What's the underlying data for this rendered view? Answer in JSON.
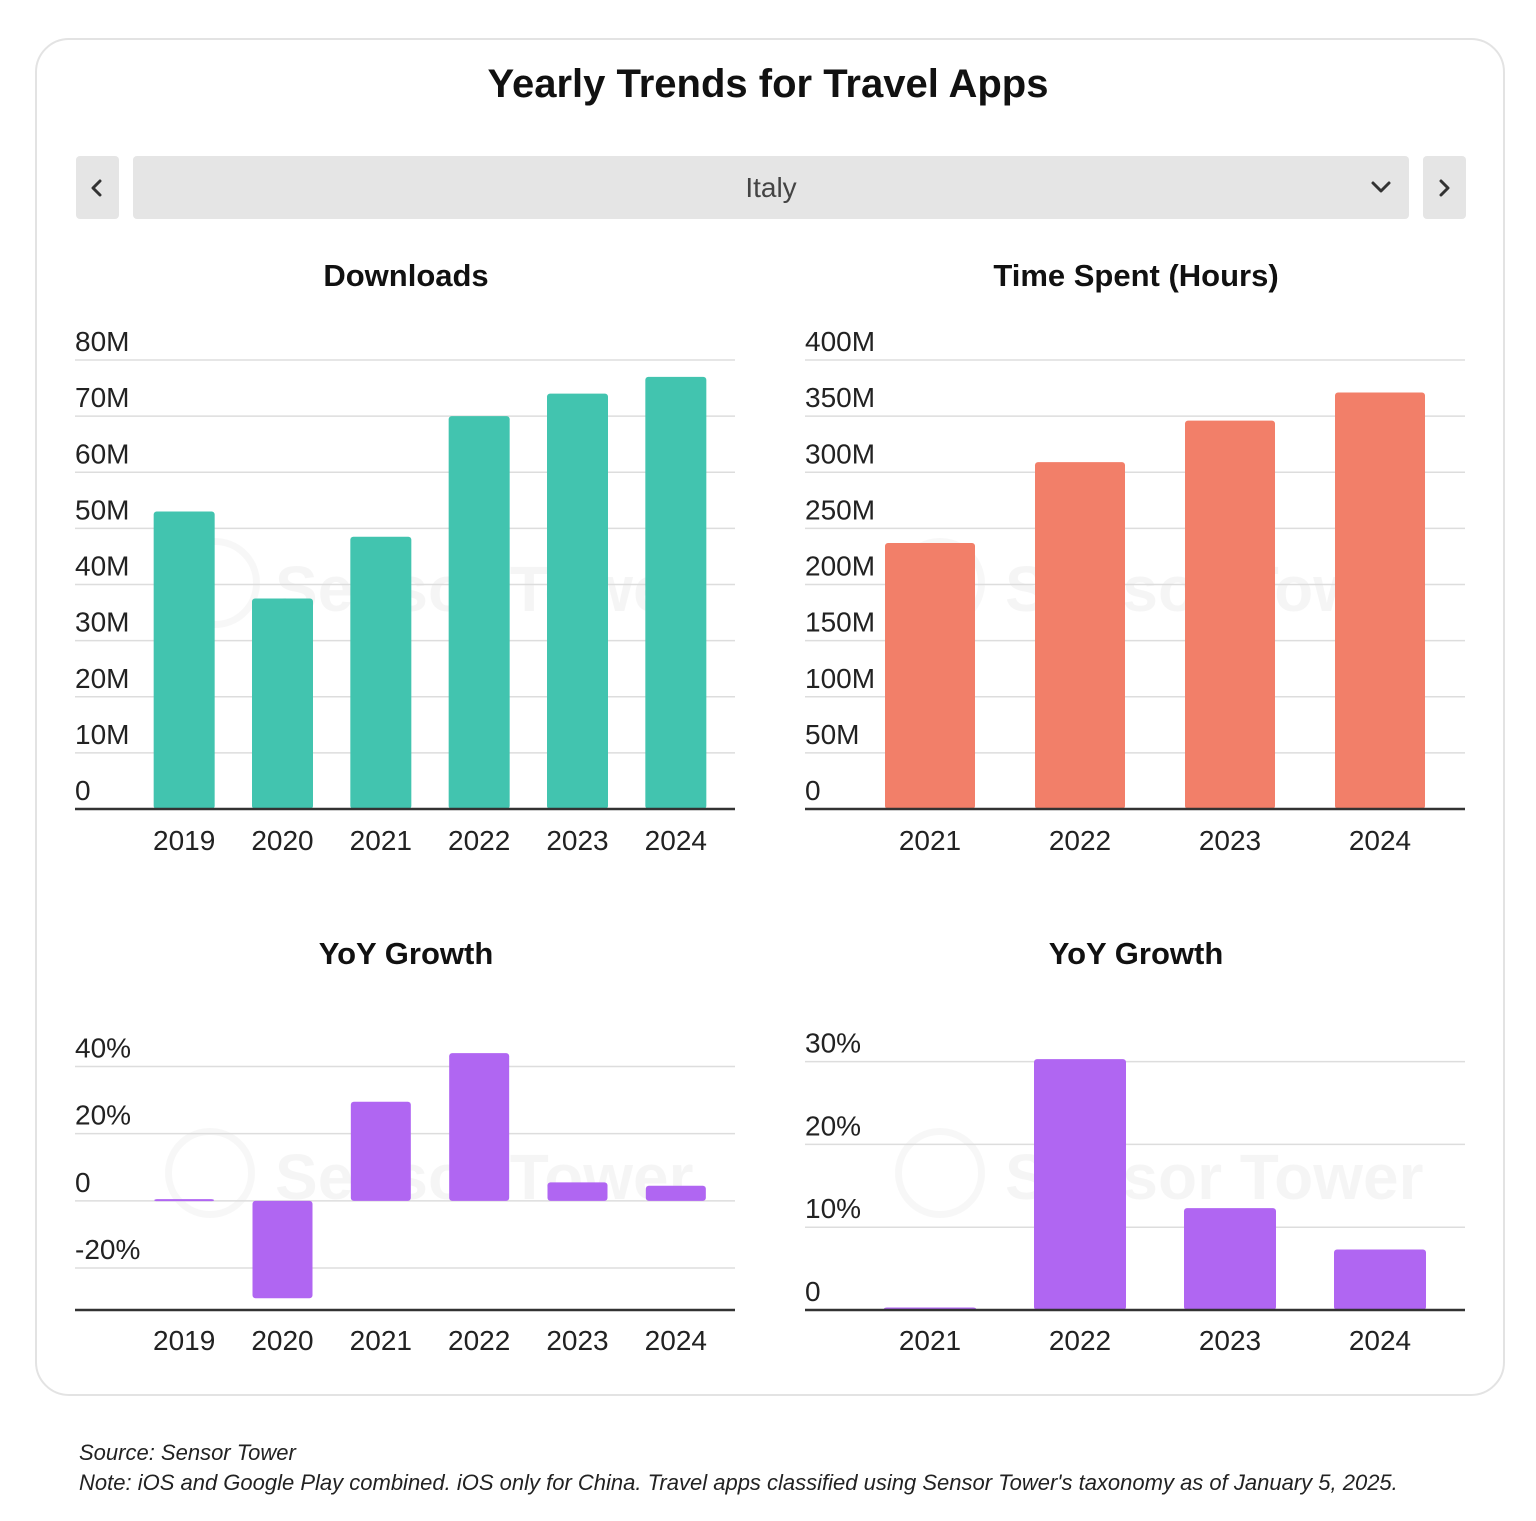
{
  "title": "Yearly Trends for Travel Apps",
  "selector": {
    "value": "Italy"
  },
  "icons": {
    "prev": "chevron-left-icon",
    "next": "chevron-right-icon",
    "dropdown": "chevron-down-icon"
  },
  "watermark_text": "Sensor Tower",
  "footer": {
    "source": "Source: Sensor Tower",
    "note": "Note: iOS and Google Play combined. iOS only for China. Travel apps classified using Sensor Tower's taxonomy as of January 5, 2025."
  },
  "chart_data": [
    {
      "id": "downloads",
      "type": "bar",
      "title": "Downloads",
      "categories": [
        "2019",
        "2020",
        "2021",
        "2022",
        "2023",
        "2024"
      ],
      "values": [
        53,
        37.5,
        48.5,
        70,
        74,
        77
      ],
      "ylim": [
        0,
        80
      ],
      "yticks": [
        0,
        10,
        20,
        30,
        40,
        50,
        60,
        70,
        80
      ],
      "ytick_labels": [
        "0",
        "10M",
        "20M",
        "30M",
        "40M",
        "50M",
        "60M",
        "70M",
        "80M"
      ],
      "grid": true,
      "color": "#42c4af"
    },
    {
      "id": "time-spent",
      "type": "bar",
      "title": "Time Spent (Hours)",
      "categories": [
        "2021",
        "2022",
        "2023",
        "2024"
      ],
      "values": [
        237,
        309,
        346,
        371
      ],
      "ylim": [
        0,
        400
      ],
      "yticks": [
        0,
        50,
        100,
        150,
        200,
        250,
        300,
        350,
        400
      ],
      "ytick_labels": [
        "0",
        "50M",
        "100M",
        "150M",
        "200M",
        "250M",
        "300M",
        "350M",
        "400M"
      ],
      "grid": true,
      "color": "#f27f69"
    },
    {
      "id": "downloads-yoy",
      "type": "bar",
      "title": "YoY Growth",
      "categories": [
        "2019",
        "2020",
        "2021",
        "2022",
        "2023",
        "2024"
      ],
      "values": [
        0.5,
        -29,
        29.5,
        44,
        5.5,
        4.5
      ],
      "ylim": [
        -32.5,
        47
      ],
      "yticks": [
        -20,
        0,
        20,
        40
      ],
      "ytick_labels": [
        "-20%",
        "0",
        "20%",
        "40%"
      ],
      "grid": true,
      "color": "#b066f2"
    },
    {
      "id": "time-yoy",
      "type": "bar",
      "title": "YoY Growth",
      "categories": [
        "2021",
        "2022",
        "2023",
        "2024"
      ],
      "values": [
        0.3,
        30.3,
        12.3,
        7.3
      ],
      "ylim": [
        0,
        32
      ],
      "yticks": [
        0,
        10,
        20,
        30
      ],
      "ytick_labels": [
        "0",
        "10%",
        "20%",
        "30%"
      ],
      "grid": true,
      "color": "#b066f2"
    }
  ]
}
